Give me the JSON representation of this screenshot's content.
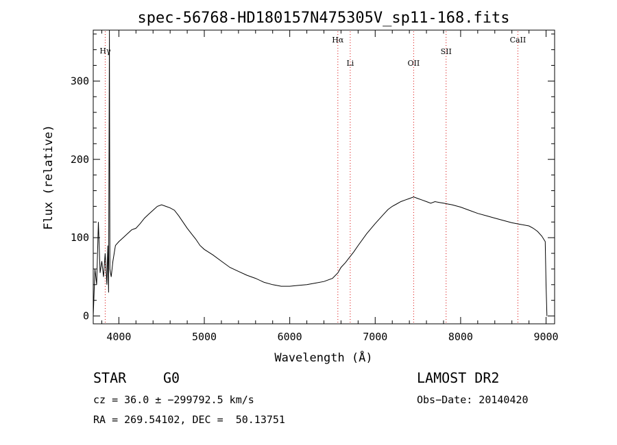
{
  "chart_data": {
    "type": "line",
    "title": "spec-56768-HD180157N475305V_sp11-168.fits",
    "xlabel": "Wavelength (Å)",
    "ylabel": "Flux (relative)",
    "xlim": [
      3700,
      9100
    ],
    "ylim": [
      -10,
      365
    ],
    "xticks": [
      4000,
      5000,
      6000,
      7000,
      8000,
      9000
    ],
    "yticks": [
      0,
      100,
      200,
      300
    ],
    "grid": false,
    "series": [
      {
        "x": [
          3700,
          3720,
          3740,
          3760,
          3780,
          3800,
          3820,
          3840,
          3860,
          3870,
          3880,
          3889,
          3895,
          3910,
          3930,
          3960,
          4000,
          4050,
          4100,
          4150,
          4200,
          4250,
          4300,
          4350,
          4400,
          4450,
          4500,
          4550,
          4600,
          4650,
          4700,
          4750,
          4800,
          4850,
          4900,
          4950,
          5000,
          5100,
          5200,
          5300,
          5400,
          5500,
          5600,
          5700,
          5800,
          5900,
          6000,
          6100,
          6200,
          6300,
          6400,
          6500,
          6563,
          6600,
          6650,
          6700,
          6750,
          6800,
          6900,
          7000,
          7100,
          7150,
          7200,
          7250,
          7300,
          7350,
          7400,
          7450,
          7500,
          7550,
          7600,
          7650,
          7700,
          7750,
          7800,
          7850,
          7900,
          8000,
          8100,
          8200,
          8300,
          8400,
          8500,
          8600,
          8700,
          8800,
          8850,
          8900,
          8950,
          8990,
          9000,
          9010
        ],
        "y": [
          0,
          60,
          40,
          120,
          55,
          70,
          50,
          80,
          40,
          90,
          30,
          368,
          60,
          50,
          70,
          90,
          95,
          100,
          105,
          110,
          112,
          118,
          125,
          130,
          135,
          140,
          142,
          140,
          138,
          135,
          128,
          120,
          112,
          105,
          98,
          90,
          85,
          78,
          70,
          62,
          57,
          52,
          48,
          43,
          40,
          38,
          38,
          39,
          40,
          42,
          44,
          48,
          55,
          62,
          68,
          75,
          82,
          90,
          105,
          118,
          130,
          136,
          140,
          143,
          146,
          148,
          150,
          152,
          150,
          148,
          146,
          144,
          146,
          145,
          144,
          143,
          142,
          139,
          135,
          131,
          128,
          125,
          122,
          119,
          117,
          115,
          112,
          108,
          102,
          95,
          40,
          0
        ]
      }
    ],
    "lines": [
      {
        "label": "Hγ",
        "x": 3840
      },
      {
        "label": "Hα",
        "x": 6563
      },
      {
        "label": "Li",
        "x": 6708
      },
      {
        "label": "OII",
        "x": 7450
      },
      {
        "label": "SII",
        "x": 7830
      },
      {
        "label": "CaII",
        "x": 8670
      }
    ],
    "line_color": "#d80000"
  },
  "info": {
    "object": "STAR",
    "subclass": "G0",
    "survey": "LAMOST DR2",
    "cz": "cz = 36.0 ± −299792.5 km/s",
    "obsdate": "Obs−Date: 20140420",
    "radec": "RA = 269.54102, DEC =  50.13751"
  }
}
